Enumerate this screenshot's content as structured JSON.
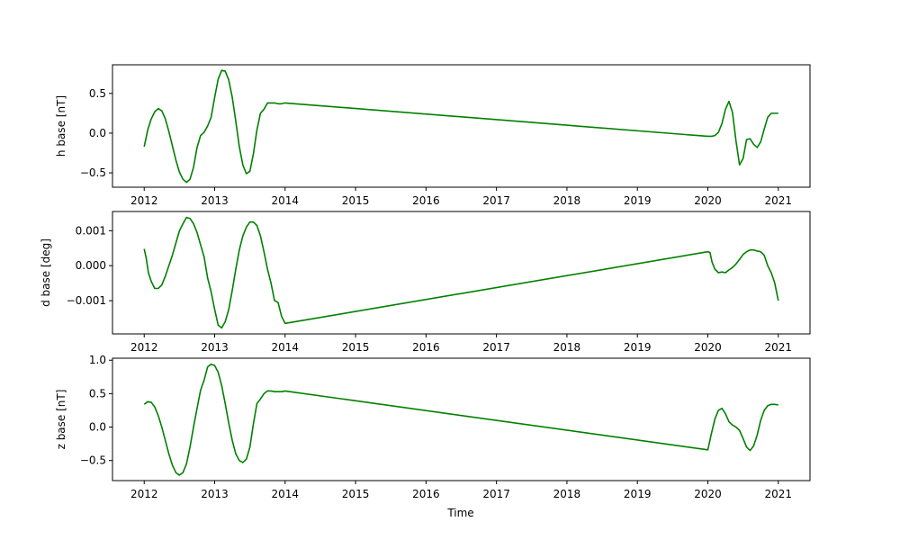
{
  "colors": {
    "line": "#008000",
    "axes": "#000000",
    "background": "#ffffff"
  },
  "chart_data": [
    {
      "type": "line",
      "ylabel": "h base [nT]",
      "xlabel": "",
      "xlim": [
        2011.55,
        2021.45
      ],
      "ylim": [
        -0.68,
        0.86
      ],
      "xticks": [
        2012,
        2013,
        2014,
        2015,
        2016,
        2017,
        2018,
        2019,
        2020,
        2021
      ],
      "xtick_labels": [
        "2012",
        "2013",
        "2014",
        "2015",
        "2016",
        "2017",
        "2018",
        "2019",
        "2020",
        "2021"
      ],
      "yticks": [
        -0.5,
        0.0,
        0.5
      ],
      "ytick_labels": [
        "−0.5",
        "0.0",
        "0.5"
      ],
      "series": [
        {
          "x": [
            2012.0,
            2012.05,
            2012.1,
            2012.15,
            2012.2,
            2012.25,
            2012.3,
            2012.35,
            2012.4,
            2012.45,
            2012.5,
            2012.55,
            2012.6,
            2012.65,
            2012.7,
            2012.75,
            2012.8,
            2012.85,
            2012.9,
            2012.95,
            2013.0,
            2013.05,
            2013.1,
            2013.15,
            2013.2,
            2013.25,
            2013.3,
            2013.35,
            2013.4,
            2013.45,
            2013.5,
            2013.55,
            2013.6,
            2013.65,
            2013.7,
            2013.75,
            2013.8,
            2013.85,
            2013.9,
            2013.95,
            2014.0,
            2020.0,
            2020.05,
            2020.1,
            2020.15,
            2020.2,
            2020.25,
            2020.3,
            2020.35,
            2020.4,
            2020.45,
            2020.5,
            2020.55,
            2020.6,
            2020.65,
            2020.7,
            2020.75,
            2020.8,
            2020.85,
            2020.9,
            2020.95,
            2021.0
          ],
          "y": [
            -0.17,
            0.04,
            0.18,
            0.27,
            0.31,
            0.28,
            0.18,
            0.02,
            -0.16,
            -0.34,
            -0.49,
            -0.58,
            -0.62,
            -0.58,
            -0.43,
            -0.18,
            -0.03,
            0.01,
            0.09,
            0.2,
            0.45,
            0.68,
            0.79,
            0.78,
            0.67,
            0.45,
            0.15,
            -0.17,
            -0.4,
            -0.51,
            -0.48,
            -0.26,
            0.04,
            0.25,
            0.3,
            0.38,
            0.38,
            0.38,
            0.37,
            0.37,
            0.38,
            -0.04,
            -0.04,
            -0.03,
            0.01,
            0.12,
            0.3,
            0.4,
            0.26,
            -0.1,
            -0.4,
            -0.32,
            -0.08,
            -0.07,
            -0.14,
            -0.18,
            -0.11,
            0.05,
            0.2,
            0.25,
            0.25,
            0.25
          ]
        }
      ]
    },
    {
      "type": "line",
      "ylabel": "d base [deg]",
      "xlabel": "",
      "xlim": [
        2011.55,
        2021.45
      ],
      "ylim": [
        -0.00195,
        0.00155
      ],
      "xticks": [
        2012,
        2013,
        2014,
        2015,
        2016,
        2017,
        2018,
        2019,
        2020,
        2021
      ],
      "xtick_labels": [
        "2012",
        "2013",
        "2014",
        "2015",
        "2016",
        "2017",
        "2018",
        "2019",
        "2020",
        "2021"
      ],
      "yticks": [
        -0.001,
        0.0,
        0.001
      ],
      "ytick_labels": [
        "−0.001",
        "0.000",
        "0.001"
      ],
      "series": [
        {
          "x": [
            2012.0,
            2012.03,
            2012.06,
            2012.1,
            2012.15,
            2012.2,
            2012.25,
            2012.3,
            2012.35,
            2012.4,
            2012.45,
            2012.5,
            2012.55,
            2012.6,
            2012.65,
            2012.7,
            2012.75,
            2012.8,
            2012.85,
            2012.9,
            2012.95,
            2013.0,
            2013.05,
            2013.1,
            2013.15,
            2013.2,
            2013.25,
            2013.3,
            2013.35,
            2013.4,
            2013.45,
            2013.5,
            2013.55,
            2013.6,
            2013.65,
            2013.7,
            2013.75,
            2013.8,
            2013.85,
            2013.9,
            2013.95,
            2014.0,
            2020.0,
            2020.03,
            2020.06,
            2020.1,
            2020.15,
            2020.2,
            2020.25,
            2020.3,
            2020.35,
            2020.4,
            2020.45,
            2020.5,
            2020.55,
            2020.6,
            2020.65,
            2020.7,
            2020.75,
            2020.8,
            2020.85,
            2020.9,
            2020.95,
            2021.0
          ],
          "y": [
            0.00048,
            0.0002,
            -0.0002,
            -0.00045,
            -0.00065,
            -0.00065,
            -0.00055,
            -0.0003,
            0.0,
            0.0003,
            0.00065,
            0.001,
            0.0012,
            0.00138,
            0.00135,
            0.0012,
            0.00095,
            0.0006,
            0.00025,
            -0.00035,
            -0.00075,
            -0.00125,
            -0.0017,
            -0.00178,
            -0.0016,
            -0.00125,
            -0.0007,
            -0.0001,
            0.00045,
            0.00085,
            0.0011,
            0.00125,
            0.00125,
            0.00115,
            0.00085,
            0.0004,
            -0.0001,
            -0.0005,
            -0.001,
            -0.00105,
            -0.00145,
            -0.00165,
            0.0004,
            0.00038,
            0.0001,
            -0.0001,
            -0.0002,
            -0.00018,
            -0.0002,
            -0.00012,
            -5e-05,
            5e-05,
            0.00018,
            0.00032,
            0.0004,
            0.00045,
            0.00045,
            0.00042,
            0.0004,
            0.0003,
            0.0,
            -0.0002,
            -0.0005,
            -0.001
          ]
        }
      ]
    },
    {
      "type": "line",
      "ylabel": "z base [nT]",
      "xlabel": "Time",
      "xlim": [
        2011.55,
        2021.45
      ],
      "ylim": [
        -0.8,
        1.03
      ],
      "xticks": [
        2012,
        2013,
        2014,
        2015,
        2016,
        2017,
        2018,
        2019,
        2020,
        2021
      ],
      "xtick_labels": [
        "2012",
        "2013",
        "2014",
        "2015",
        "2016",
        "2017",
        "2018",
        "2019",
        "2020",
        "2021"
      ],
      "yticks": [
        -0.5,
        0.0,
        0.5,
        1.0
      ],
      "ytick_labels": [
        "−0.5",
        "0.0",
        "0.5",
        "1.0"
      ],
      "series": [
        {
          "x": [
            2012.0,
            2012.05,
            2012.1,
            2012.15,
            2012.2,
            2012.25,
            2012.3,
            2012.35,
            2012.4,
            2012.45,
            2012.5,
            2012.55,
            2012.6,
            2012.65,
            2012.7,
            2012.75,
            2012.8,
            2012.85,
            2012.9,
            2012.95,
            2013.0,
            2013.05,
            2013.1,
            2013.15,
            2013.2,
            2013.25,
            2013.3,
            2013.35,
            2013.4,
            2013.45,
            2013.5,
            2013.55,
            2013.6,
            2013.65,
            2013.7,
            2013.75,
            2013.8,
            2013.85,
            2013.9,
            2013.95,
            2014.0,
            2020.0,
            2020.05,
            2020.1,
            2020.15,
            2020.2,
            2020.25,
            2020.3,
            2020.35,
            2020.4,
            2020.45,
            2020.5,
            2020.55,
            2020.6,
            2020.65,
            2020.7,
            2020.75,
            2020.8,
            2020.85,
            2020.9,
            2020.95,
            2021.0
          ],
          "y": [
            0.34,
            0.38,
            0.37,
            0.3,
            0.17,
            0.0,
            -0.2,
            -0.4,
            -0.57,
            -0.68,
            -0.72,
            -0.68,
            -0.55,
            -0.3,
            0.0,
            0.28,
            0.55,
            0.7,
            0.9,
            0.94,
            0.92,
            0.82,
            0.62,
            0.35,
            0.06,
            -0.2,
            -0.4,
            -0.5,
            -0.53,
            -0.48,
            -0.3,
            0.05,
            0.35,
            0.42,
            0.5,
            0.54,
            0.54,
            0.53,
            0.53,
            0.53,
            0.54,
            -0.34,
            -0.1,
            0.12,
            0.25,
            0.28,
            0.2,
            0.08,
            0.03,
            0.0,
            -0.05,
            -0.17,
            -0.3,
            -0.35,
            -0.28,
            -0.12,
            0.1,
            0.25,
            0.32,
            0.34,
            0.34,
            0.33
          ]
        }
      ]
    }
  ]
}
